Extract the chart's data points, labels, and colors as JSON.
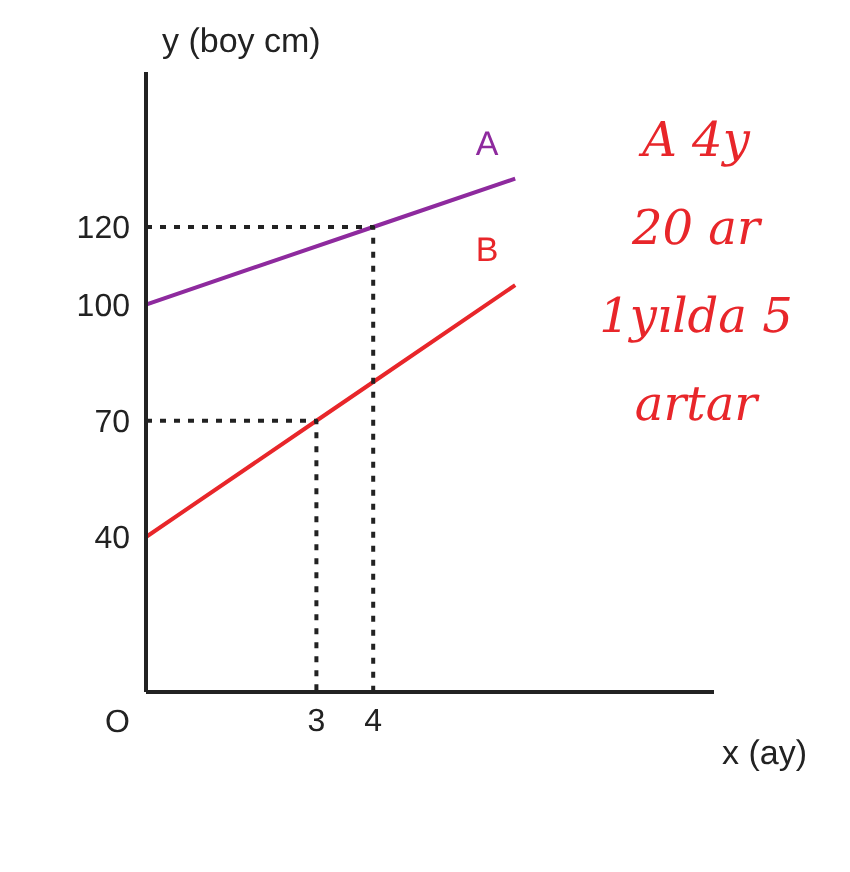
{
  "chart_data": {
    "type": "line",
    "xlabel": "x (ay)",
    "ylabel": "y (boy cm)",
    "xlim": [
      0,
      10
    ],
    "ylim": [
      0,
      160
    ],
    "xticks": [
      3,
      4
    ],
    "yticks": [
      40,
      70,
      100,
      120
    ],
    "marker": "none",
    "series": [
      {
        "name": "A",
        "color": "#8e2a9e",
        "x": [
          0,
          4,
          6.5
        ],
        "values": [
          100,
          120,
          132.5
        ]
      },
      {
        "name": "B",
        "color": "#e8262a",
        "x": [
          0,
          3,
          4,
          6.5
        ],
        "values": [
          40,
          70,
          80,
          105
        ]
      },
      {
        "color": "#222222",
        "line_style": "dotted",
        "x": [
          0,
          4,
          4
        ],
        "values": [
          120,
          120,
          0
        ]
      },
      {
        "color": "#222222",
        "line_style": "dotted",
        "x": [
          0,
          3,
          3
        ],
        "values": [
          70,
          70,
          0
        ]
      }
    ],
    "annotations": [
      "O",
      "A 4y",
      "20 ar",
      "1yılda 5",
      "artar"
    ]
  }
}
